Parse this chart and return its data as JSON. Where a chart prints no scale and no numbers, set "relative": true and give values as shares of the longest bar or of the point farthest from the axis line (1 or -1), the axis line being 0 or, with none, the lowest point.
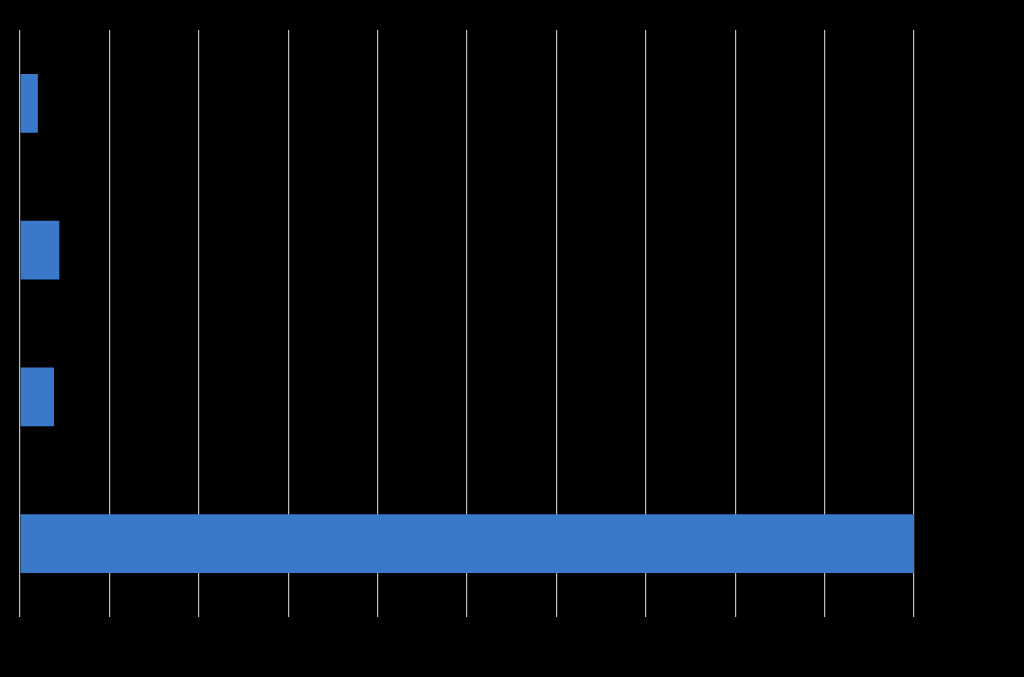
{
  "chart_data": {
    "type": "bar",
    "orientation": "horizontal",
    "relative": true,
    "categories": [
      null,
      null,
      null,
      null
    ],
    "values": [
      0.02,
      0.044,
      0.038,
      1
    ],
    "color": "#3a78c9",
    "grid": "x",
    "legend": false
  }
}
